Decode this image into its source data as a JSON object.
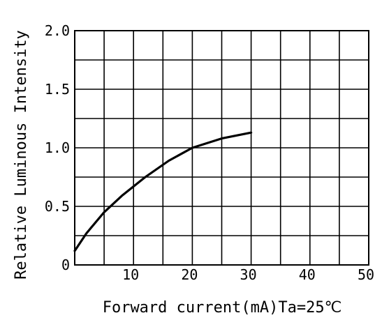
{
  "chart_data": {
    "type": "line",
    "title": "",
    "xlabel": "Forward current(mA)Ta=25℃",
    "ylabel": "Relative Luminous Intensity",
    "xlim": [
      0,
      50
    ],
    "ylim": [
      0,
      2.0
    ],
    "grid": true,
    "x_ticks": [
      "10",
      "20",
      "30",
      "40",
      "50"
    ],
    "y_ticks": [
      "0",
      "0.5",
      "1.0",
      "1.5",
      "2.0"
    ],
    "x_tick_values": [
      10,
      20,
      30,
      40,
      50
    ],
    "y_tick_values": [
      0,
      0.5,
      1.0,
      1.5,
      2.0
    ],
    "x_grid_step": 5,
    "y_grid_step": 0.25,
    "series": [
      {
        "x": [
          0,
          2,
          5,
          8,
          12,
          16,
          20,
          25,
          30
        ],
        "values": [
          0.12,
          0.27,
          0.45,
          0.59,
          0.75,
          0.89,
          1.0,
          1.08,
          1.13
        ]
      }
    ]
  }
}
